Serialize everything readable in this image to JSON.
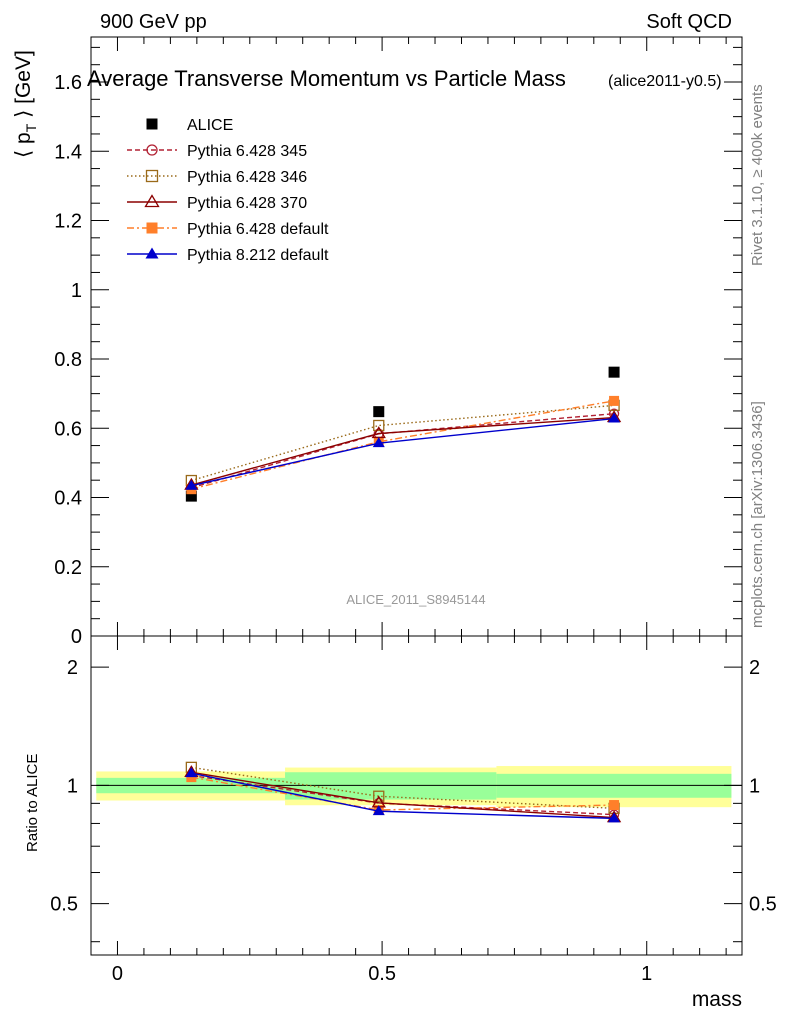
{
  "header": {
    "left_label": "900 GeV pp",
    "right_label": "Soft QCD"
  },
  "side": {
    "rivet_label": "Rivet 3.1.10, ≥ 400k events",
    "mcplots_label": "mcplots.cern.ch [arXiv:1306.3436]"
  },
  "chart_data": {
    "type": "scatter",
    "title": "Average Transverse Momentum vs Particle Mass",
    "tag": "(alice2011-y0.5)",
    "analysis_label": "ALICE_2011_S8945144",
    "xlabel": "mass",
    "ylabel_parts": {
      "open": "⟨ p",
      "sub": "T",
      "close": " ⟩ [GeV]"
    },
    "ratio_ylabel": "Ratio to ALICE",
    "xlim": [
      -0.05,
      1.18
    ],
    "ylim": [
      0,
      1.73
    ],
    "ratio_ylim": [
      0.37,
      2.4
    ],
    "x_ticks": [
      0,
      0.5,
      1
    ],
    "x_tick_labels": [
      "0",
      "0.5",
      "1"
    ],
    "y_ticks": [
      0,
      0.2,
      0.4,
      0.6,
      0.8,
      1,
      1.2,
      1.4,
      1.6
    ],
    "y_tick_labels": [
      "0",
      "0.2",
      "0.4",
      "0.6",
      "0.8",
      "1",
      "1.2",
      "1.4",
      "1.6"
    ],
    "ratio_ticks": [
      0.5,
      1,
      2
    ],
    "ratio_tick_labels": [
      "0.5",
      "1",
      "2"
    ],
    "x": [
      0.1396,
      0.4937,
      0.9383
    ],
    "bin_edges": [
      [
        -0.04,
        0.3166
      ],
      [
        0.3166,
        0.716
      ],
      [
        0.716,
        1.16
      ]
    ],
    "series": [
      {
        "name": "ALICE",
        "values": [
          0.404,
          0.648,
          0.762
        ],
        "color": "#000000",
        "marker": "filled-square",
        "dash": "none"
      },
      {
        "name": "Pythia 6.428 345",
        "values": [
          0.428,
          0.584,
          0.642
        ],
        "color": "#b22234",
        "marker": "open-circle",
        "dash": "5,3"
      },
      {
        "name": "Pythia 6.428 346",
        "values": [
          0.449,
          0.608,
          0.666
        ],
        "color": "#9a6a1a",
        "marker": "open-square",
        "dash": "1.5,2.5"
      },
      {
        "name": "Pythia 6.428 370",
        "values": [
          0.436,
          0.585,
          0.631
        ],
        "color": "#8b0000",
        "marker": "open-triangle",
        "dash": "none"
      },
      {
        "name": "Pythia 6.428 default",
        "values": [
          0.424,
          0.561,
          0.679
        ],
        "color": "#ff7f2a",
        "marker": "filled-square",
        "dash": "7,3,2,3"
      },
      {
        "name": "Pythia 8.212 default",
        "values": [
          0.434,
          0.557,
          0.628
        ],
        "color": "#0000cc",
        "marker": "filled-triangle",
        "dash": "none"
      }
    ],
    "ratio_bands": {
      "inner": [
        0.045,
        0.08,
        0.07
      ],
      "outer": [
        0.085,
        0.11,
        0.12
      ],
      "inner_color": "#99ff99",
      "outer_color": "#ffff99"
    }
  }
}
